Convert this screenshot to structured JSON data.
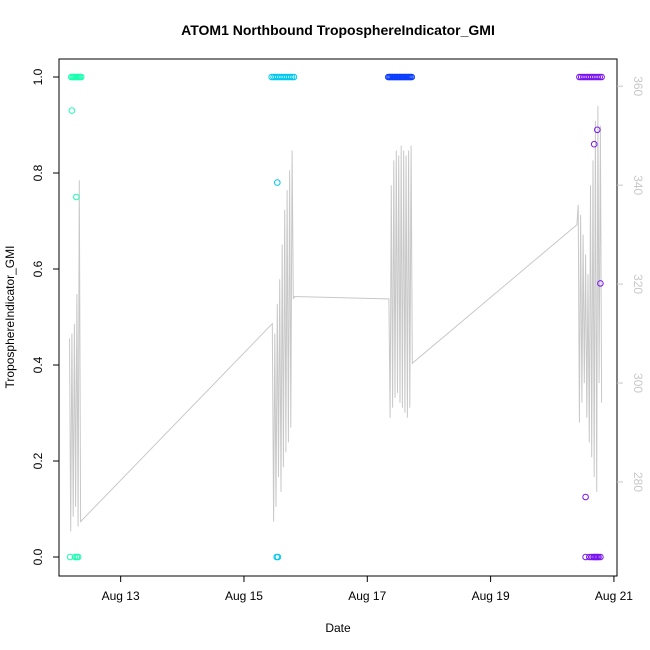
{
  "chart_data": {
    "type": "scatter",
    "title": "ATOM1 Northbound TroposphereIndicator_GMI",
    "xlabel": "Date",
    "ylabel": "TroposphereIndicator_GMI",
    "x_tick_labels": [
      "Aug 13",
      "Aug 15",
      "Aug 17",
      "Aug 19",
      "Aug 21"
    ],
    "x_tick_values": [
      13,
      15,
      17,
      19,
      21
    ],
    "xlim": [
      12.0,
      21.05
    ],
    "ylim": [
      0.0,
      1.0
    ],
    "y_tick_labels": [
      "0.0",
      "0.2",
      "0.4",
      "0.6",
      "0.8",
      "1.0"
    ],
    "y_tick_values": [
      0.0,
      0.2,
      0.4,
      0.6,
      0.8,
      1.0
    ],
    "y2_tick_labels": [
      "280",
      "300",
      "320",
      "340",
      "360"
    ],
    "y2_tick_values": [
      280,
      300,
      320,
      340,
      360
    ],
    "y2lim": [
      261,
      365.5
    ],
    "grid": false,
    "secondary_line_color": "#c8c8c8",
    "series": [
      {
        "color": "#1affb0",
        "points": [
          [
            12.2,
            1.0
          ],
          [
            12.22,
            1.0
          ],
          [
            12.24,
            1.0
          ],
          [
            12.26,
            1.0
          ],
          [
            12.28,
            1.0
          ],
          [
            12.3,
            1.0
          ],
          [
            12.32,
            1.0
          ],
          [
            12.34,
            1.0
          ],
          [
            12.36,
            1.0
          ],
          [
            12.18,
            0.0
          ],
          [
            12.26,
            0.0
          ],
          [
            12.29,
            0.0
          ],
          [
            12.31,
            0.0
          ],
          [
            12.21,
            0.93
          ],
          [
            12.28,
            0.75
          ]
        ]
      },
      {
        "color": "#00c8f0",
        "points": [
          [
            15.45,
            1.0
          ],
          [
            15.48,
            1.0
          ],
          [
            15.51,
            1.0
          ],
          [
            15.54,
            1.0
          ],
          [
            15.57,
            1.0
          ],
          [
            15.6,
            1.0
          ],
          [
            15.63,
            1.0
          ],
          [
            15.66,
            1.0
          ],
          [
            15.69,
            1.0
          ],
          [
            15.72,
            1.0
          ],
          [
            15.75,
            1.0
          ],
          [
            15.78,
            1.0
          ],
          [
            15.81,
            1.0
          ],
          [
            15.53,
            0.0
          ],
          [
            15.55,
            0.0
          ],
          [
            15.54,
            0.78
          ]
        ]
      },
      {
        "color": "#0a3cff",
        "points": [
          [
            17.34,
            1.0
          ],
          [
            17.36,
            1.0
          ],
          [
            17.38,
            1.0
          ],
          [
            17.4,
            1.0
          ],
          [
            17.42,
            1.0
          ],
          [
            17.44,
            1.0
          ],
          [
            17.46,
            1.0
          ],
          [
            17.48,
            1.0
          ],
          [
            17.5,
            1.0
          ],
          [
            17.52,
            1.0
          ],
          [
            17.54,
            1.0
          ],
          [
            17.56,
            1.0
          ],
          [
            17.58,
            1.0
          ],
          [
            17.6,
            1.0
          ],
          [
            17.62,
            1.0
          ],
          [
            17.64,
            1.0
          ],
          [
            17.66,
            1.0
          ],
          [
            17.68,
            1.0
          ],
          [
            17.7,
            1.0
          ],
          [
            17.72,
            1.0
          ]
        ]
      },
      {
        "color": "#7a14f0",
        "points": [
          [
            20.44,
            1.0
          ],
          [
            20.47,
            1.0
          ],
          [
            20.5,
            1.0
          ],
          [
            20.53,
            1.0
          ],
          [
            20.56,
            1.0
          ],
          [
            20.59,
            1.0
          ],
          [
            20.62,
            1.0
          ],
          [
            20.65,
            1.0
          ],
          [
            20.68,
            1.0
          ],
          [
            20.71,
            1.0
          ],
          [
            20.74,
            1.0
          ],
          [
            20.77,
            1.0
          ],
          [
            20.8,
            1.0
          ],
          [
            20.54,
            0.0
          ],
          [
            20.6,
            0.0
          ],
          [
            20.64,
            0.0
          ],
          [
            20.67,
            0.0
          ],
          [
            20.69,
            0.0
          ],
          [
            20.71,
            0.0
          ],
          [
            20.73,
            0.0
          ],
          [
            20.75,
            0.0
          ],
          [
            20.78,
            0.0
          ],
          [
            20.73,
            0.89
          ],
          [
            20.68,
            0.86
          ],
          [
            20.78,
            0.57
          ],
          [
            20.54,
            0.125
          ]
        ]
      }
    ],
    "secondary_line": [
      [
        12.17,
        309
      ],
      [
        12.19,
        270
      ],
      [
        12.21,
        310
      ],
      [
        12.23,
        273
      ],
      [
        12.25,
        312
      ],
      [
        12.27,
        275
      ],
      [
        12.29,
        318
      ],
      [
        12.31,
        271
      ],
      [
        12.33,
        341
      ],
      [
        12.35,
        272
      ],
      [
        15.46,
        312
      ],
      [
        15.48,
        272
      ],
      [
        15.5,
        310
      ],
      [
        15.52,
        275
      ],
      [
        15.54,
        316
      ],
      [
        15.56,
        281
      ],
      [
        15.58,
        321
      ],
      [
        15.6,
        278
      ],
      [
        15.62,
        328
      ],
      [
        15.64,
        283
      ],
      [
        15.66,
        335
      ],
      [
        15.68,
        286
      ],
      [
        15.7,
        339
      ],
      [
        15.72,
        288
      ],
      [
        15.74,
        343
      ],
      [
        15.76,
        291
      ],
      [
        15.78,
        347
      ],
      [
        15.8,
        317
      ],
      [
        15.82,
        317.5
      ],
      [
        17.35,
        317
      ],
      [
        17.37,
        293
      ],
      [
        17.39,
        340
      ],
      [
        17.41,
        295
      ],
      [
        17.43,
        345
      ],
      [
        17.45,
        297
      ],
      [
        17.47,
        347
      ],
      [
        17.49,
        298
      ],
      [
        17.51,
        346
      ],
      [
        17.53,
        296
      ],
      [
        17.55,
        348
      ],
      [
        17.57,
        295
      ],
      [
        17.59,
        347
      ],
      [
        17.61,
        294
      ],
      [
        17.63,
        346
      ],
      [
        17.65,
        293
      ],
      [
        17.67,
        347
      ],
      [
        17.69,
        295
      ],
      [
        17.71,
        348
      ],
      [
        17.73,
        304
      ],
      [
        20.4,
        332
      ],
      [
        20.42,
        336
      ],
      [
        20.44,
        292
      ],
      [
        20.46,
        334
      ],
      [
        20.48,
        296
      ],
      [
        20.5,
        330
      ],
      [
        20.52,
        300
      ],
      [
        20.54,
        326
      ],
      [
        20.56,
        293
      ],
      [
        20.58,
        322
      ],
      [
        20.6,
        288
      ],
      [
        20.62,
        340
      ],
      [
        20.64,
        285
      ],
      [
        20.66,
        345
      ],
      [
        20.68,
        281
      ],
      [
        20.7,
        353
      ],
      [
        20.72,
        278
      ],
      [
        20.74,
        356
      ],
      [
        20.76,
        300
      ],
      [
        20.78,
        352
      ],
      [
        20.8,
        296
      ]
    ]
  }
}
